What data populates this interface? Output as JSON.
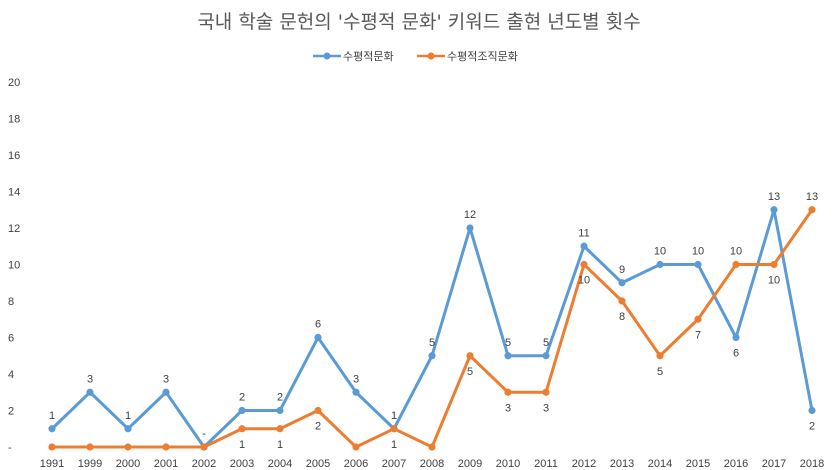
{
  "chart_data": {
    "type": "line",
    "title": "국내 학술 문헌의 '수평적 문화' 키워드 출현 년도별 횟수",
    "categories": [
      "1991",
      "1999",
      "2000",
      "2001",
      "2002",
      "2003",
      "2004",
      "2005",
      "2006",
      "2007",
      "2008",
      "2009",
      "2010",
      "2011",
      "2012",
      "2013",
      "2014",
      "2015",
      "2016",
      "2017",
      "2018"
    ],
    "y_tick_labels": [
      "-",
      "2",
      "4",
      "6",
      "8",
      "10",
      "12",
      "14",
      "16",
      "18",
      "20"
    ],
    "ylim": [
      0,
      20
    ],
    "grid": false,
    "legend_position": "top",
    "series": [
      {
        "name": "수평적문화",
        "color": "#5B9BD5",
        "values": [
          1,
          3,
          1,
          3,
          0,
          2,
          2,
          6,
          3,
          1,
          5,
          12,
          5,
          5,
          11,
          9,
          10,
          10,
          6,
          13,
          2
        ],
        "labels": [
          "1",
          "3",
          "1",
          "3",
          "-",
          "2",
          "2",
          "6",
          "3",
          "1",
          "5",
          "12",
          "5",
          "5",
          "11",
          "9",
          "10",
          "10",
          "6",
          "13",
          "2"
        ]
      },
      {
        "name": "수평적조직문화",
        "color": "#ED7D31",
        "values": [
          0,
          0,
          0,
          0,
          0,
          1,
          1,
          2,
          0,
          1,
          0,
          5,
          3,
          3,
          10,
          8,
          5,
          7,
          10,
          10,
          13
        ],
        "labels": [
          "",
          "",
          "",
          "",
          "",
          "1",
          "1",
          "2",
          "",
          "1",
          "",
          "5",
          "3",
          "3",
          "10",
          "8",
          "5",
          "7",
          "10",
          "10",
          "13"
        ]
      }
    ]
  }
}
